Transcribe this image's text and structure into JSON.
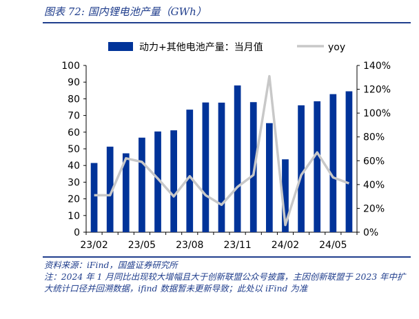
{
  "header": {
    "title": "图表 72:  国内锂电池产量（GWh）"
  },
  "chart_data": {
    "type": "bar",
    "categories": [
      "23/02",
      "23/03",
      "23/04",
      "23/05",
      "23/06",
      "23/07",
      "23/08",
      "23/09",
      "23/10",
      "23/11",
      "23/12",
      "24/01",
      "24/02",
      "24/03",
      "24/04",
      "24/05",
      "24/06"
    ],
    "x_tick_labels": [
      "23/02",
      "23/05",
      "23/08",
      "23/11",
      "24/02",
      "24/05"
    ],
    "series": [
      {
        "name": "动力+其他电池产量：当月值",
        "type": "bar",
        "axis": "left",
        "color": "#003399",
        "values": [
          41.5,
          51.3,
          47.3,
          56.7,
          60.4,
          61.1,
          73.5,
          77.8,
          77.7,
          88.0,
          78.0,
          65.4,
          43.7,
          76.1,
          78.5,
          82.8,
          84.5
        ]
      },
      {
        "name": "yoy",
        "type": "line",
        "axis": "right",
        "color": "#c8c8c8",
        "values": [
          31,
          31,
          62,
          59,
          45,
          30,
          47,
          31,
          23,
          38,
          48,
          131,
          6,
          48,
          67,
          46,
          41
        ]
      }
    ],
    "ylim_left": [
      0,
      100
    ],
    "yticks_left": [
      "0",
      "10",
      "20",
      "30",
      "40",
      "50",
      "60",
      "70",
      "80",
      "90",
      "100"
    ],
    "ylim_right": [
      0,
      140
    ],
    "yticks_right": [
      "0%",
      "20%",
      "40%",
      "60%",
      "80%",
      "100%",
      "120%",
      "140%"
    ],
    "legend": "top"
  },
  "footer": {
    "source": "资料来源：iFind，国盛证券研究所",
    "note": "注：2024 年 1 月同比出现较大增幅且大于创新联盟公众号披露，主因创新联盟于 2023 年中扩大统计口径并回溯数据，ifind 数据暂未更新导致；此处以 iFind 为准"
  }
}
